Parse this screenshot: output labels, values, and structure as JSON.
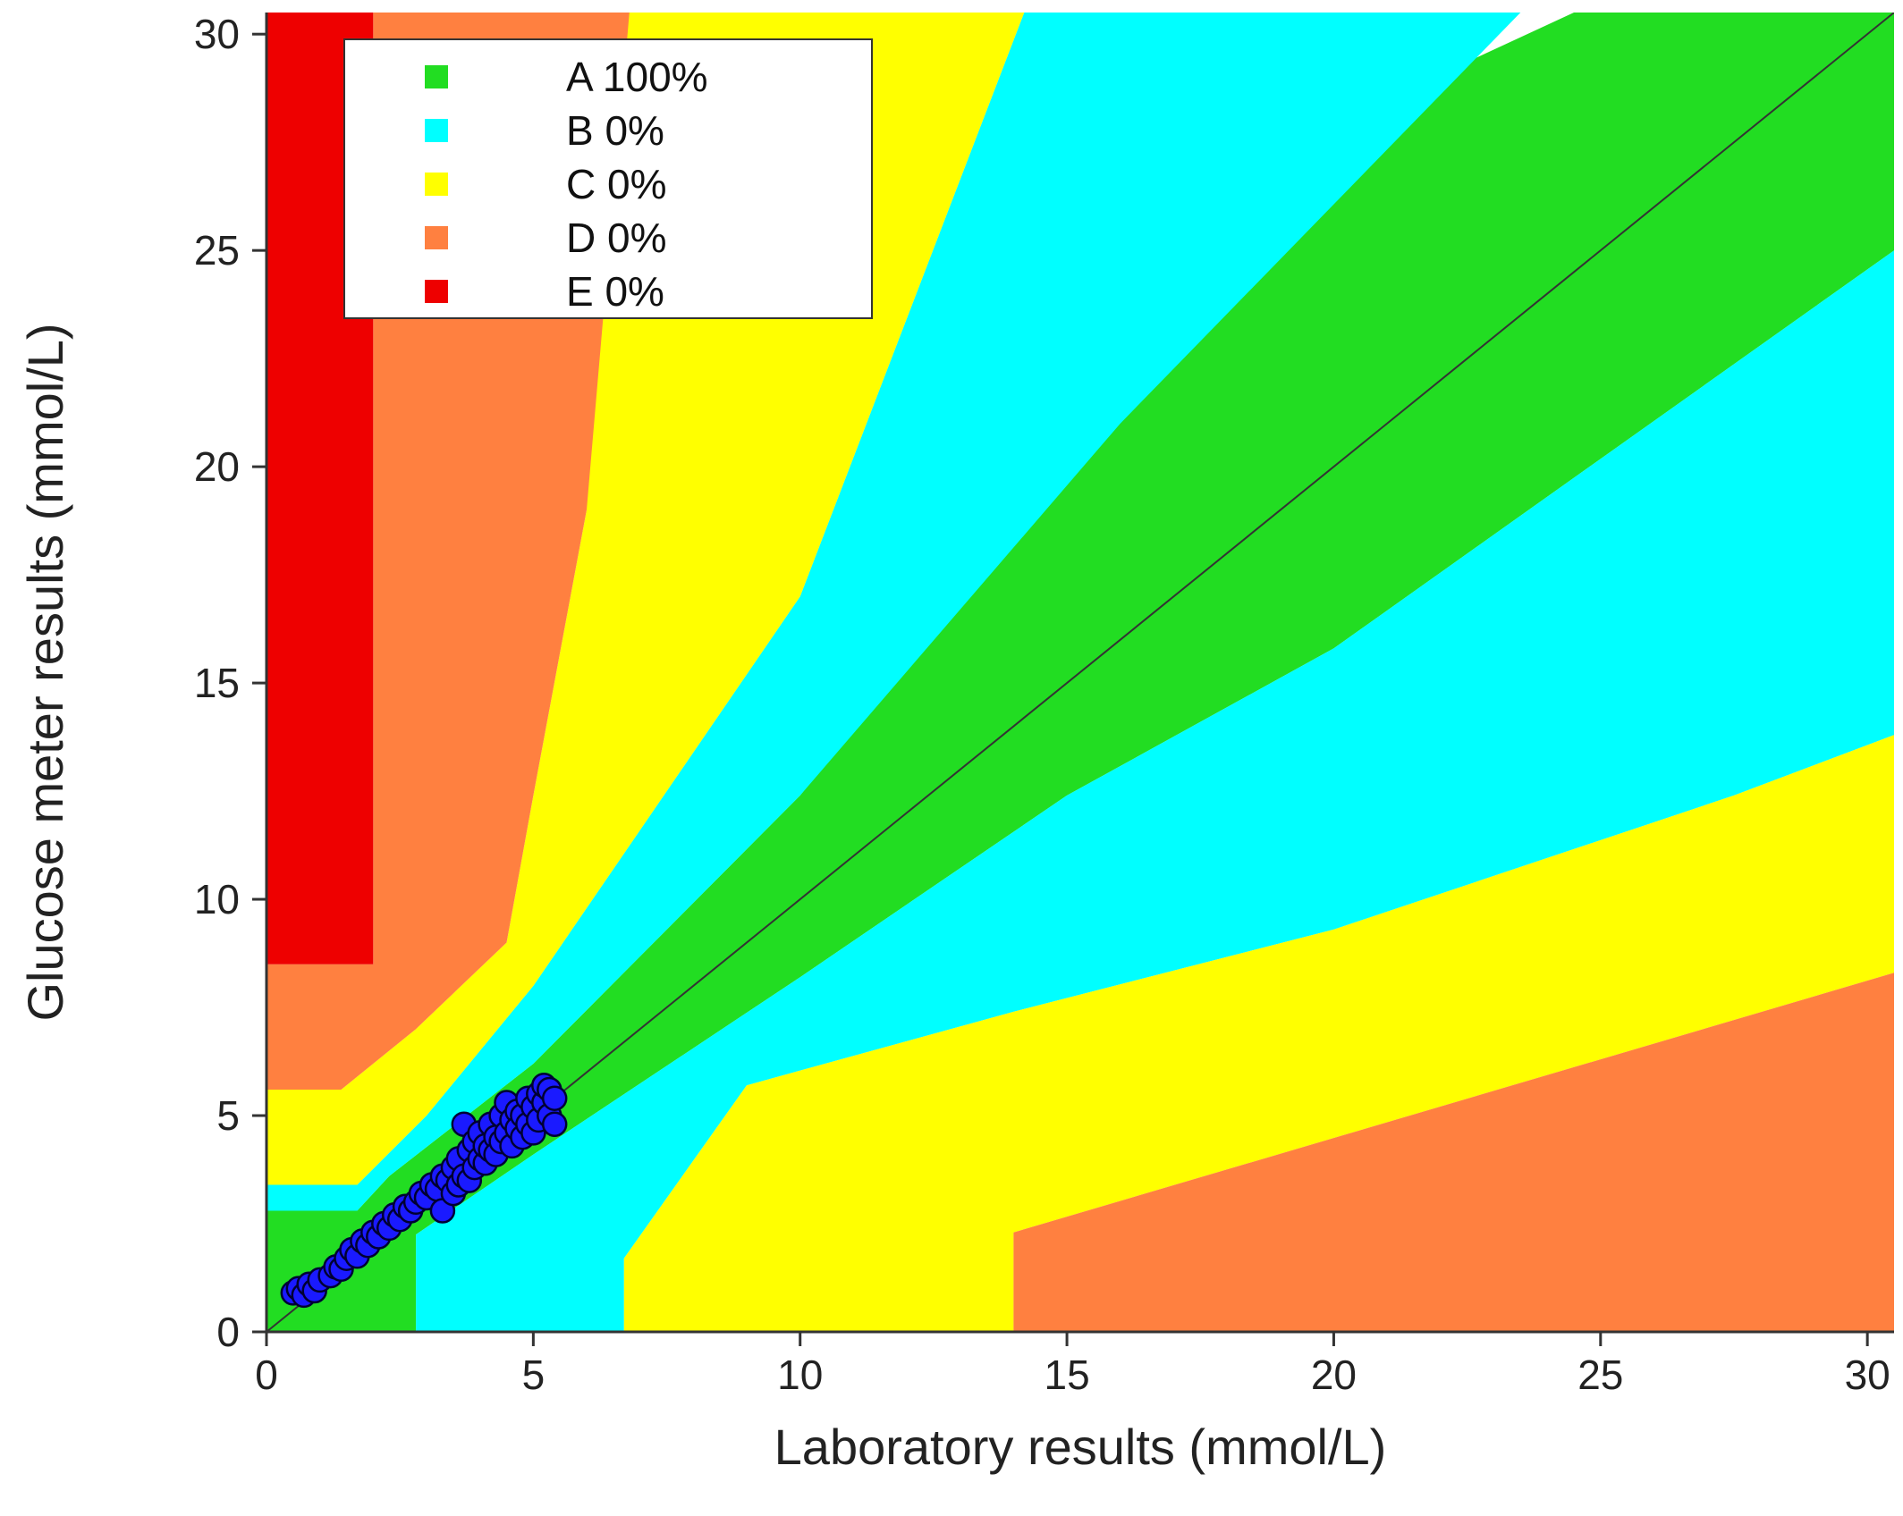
{
  "chart_data": {
    "type": "scatter",
    "title": "",
    "xlabel": "Laboratory results (mmol/L)",
    "ylabel": "Glucose meter results (mmol/L)",
    "xlim": [
      0,
      30.5
    ],
    "ylim": [
      0,
      30.5
    ],
    "xticks": [
      0,
      5,
      10,
      15,
      20,
      25,
      30
    ],
    "yticks": [
      0,
      5,
      10,
      15,
      20,
      25,
      30
    ],
    "grid": false,
    "legend_position": "top-left",
    "legend": [
      {
        "zone": "A",
        "label": "A 100%",
        "color": "#22dd22"
      },
      {
        "zone": "B",
        "label": "B 0%",
        "color": "#00ffff"
      },
      {
        "zone": "C",
        "label": "C 0%",
        "color": "#ffff00"
      },
      {
        "zone": "D",
        "label": "D 0%",
        "color": "#ff8040"
      },
      {
        "zone": "E",
        "label": "E 0%",
        "color": "#ee0000"
      }
    ],
    "zones": [
      {
        "zone": "A",
        "color": "#22dd22",
        "polygon": [
          [
            0,
            0
          ],
          [
            0,
            2.8
          ],
          [
            1.7,
            2.8
          ],
          [
            2.3,
            3.6
          ],
          [
            5,
            6.2
          ],
          [
            10,
            12.4
          ],
          [
            15,
            20
          ],
          [
            21,
            28.5
          ],
          [
            24.5,
            30.5
          ],
          [
            30.5,
            30.5
          ],
          [
            30.5,
            25
          ],
          [
            20,
            15.8
          ],
          [
            15,
            12.4
          ],
          [
            10,
            8.2
          ],
          [
            5,
            4.1
          ],
          [
            2.8,
            2.25
          ],
          [
            2.8,
            0
          ]
        ]
      },
      {
        "zone": "B",
        "color": "#00ffff",
        "polygon": [
          [
            0,
            2.8
          ],
          [
            0,
            3.4
          ],
          [
            1.7,
            3.4
          ],
          [
            3,
            5
          ],
          [
            5,
            8
          ],
          [
            10,
            17
          ],
          [
            14.2,
            30.5
          ],
          [
            23.5,
            30.5
          ],
          [
            16,
            21
          ],
          [
            10,
            12.4
          ],
          [
            5,
            6.2
          ],
          [
            2.3,
            3.6
          ],
          [
            1.7,
            2.8
          ]
        ]
      },
      {
        "zone": "B",
        "color": "#00ffff",
        "polygon": [
          [
            2.8,
            0
          ],
          [
            2.8,
            2.25
          ],
          [
            5,
            4.1
          ],
          [
            10,
            8.2
          ],
          [
            15,
            12.4
          ],
          [
            20,
            15.8
          ],
          [
            30.5,
            25
          ],
          [
            30.5,
            13.8
          ],
          [
            27.5,
            12.4
          ],
          [
            20,
            9.3
          ],
          [
            14,
            7.4
          ],
          [
            9,
            5.7
          ],
          [
            6.7,
            1.7
          ],
          [
            6.7,
            0
          ]
        ]
      },
      {
        "zone": "C",
        "color": "#ffff00",
        "polygon": [
          [
            0,
            3.4
          ],
          [
            0,
            5.6
          ],
          [
            1.4,
            5.6
          ],
          [
            2.8,
            7
          ],
          [
            4.5,
            9
          ],
          [
            5,
            12.4
          ],
          [
            6,
            19
          ],
          [
            5.9,
            30.5
          ],
          [
            14.2,
            30.5
          ],
          [
            10,
            17
          ],
          [
            5,
            8
          ],
          [
            3,
            5
          ],
          [
            1.7,
            3.4
          ]
        ]
      },
      {
        "zone": "C",
        "color": "#ffff00",
        "polygon": [
          [
            6.7,
            0
          ],
          [
            6.7,
            1.7
          ],
          [
            9,
            5.7
          ],
          [
            14,
            7.4
          ],
          [
            20,
            9.3
          ],
          [
            27.5,
            12.4
          ],
          [
            30.5,
            13.8
          ],
          [
            30.5,
            8.3
          ],
          [
            14,
            2.3
          ],
          [
            14,
            0
          ]
        ]
      },
      {
        "zone": "D",
        "color": "#ff8040",
        "polygon": [
          [
            0,
            5.6
          ],
          [
            0,
            8.5
          ],
          [
            2,
            8.5
          ],
          [
            2,
            30.5
          ],
          [
            6.8,
            30.5
          ],
          [
            6,
            19
          ],
          [
            5,
            12.4
          ],
          [
            4.5,
            9
          ],
          [
            2.8,
            7
          ],
          [
            1.4,
            5.6
          ]
        ]
      },
      {
        "zone": "D",
        "color": "#ff8040",
        "polygon": [
          [
            14,
            0
          ],
          [
            14,
            2.3
          ],
          [
            30.5,
            8.3
          ],
          [
            30.5,
            0
          ]
        ]
      },
      {
        "zone": "E",
        "color": "#ee0000",
        "polygon": [
          [
            0,
            8.5
          ],
          [
            0,
            30.5
          ],
          [
            2,
            30.5
          ],
          [
            2,
            8.5
          ]
        ]
      }
    ],
    "identity_line": [
      [
        0,
        0
      ],
      [
        30.5,
        30.5
      ]
    ],
    "points_color": "#1a1aff",
    "points": [
      [
        0.5,
        0.9
      ],
      [
        0.6,
        1.0
      ],
      [
        0.7,
        0.85
      ],
      [
        0.8,
        1.1
      ],
      [
        0.9,
        0.95
      ],
      [
        1.0,
        1.2
      ],
      [
        1.2,
        1.3
      ],
      [
        1.3,
        1.5
      ],
      [
        1.4,
        1.45
      ],
      [
        1.5,
        1.7
      ],
      [
        1.6,
        1.9
      ],
      [
        1.7,
        1.75
      ],
      [
        1.8,
        2.1
      ],
      [
        1.9,
        2.0
      ],
      [
        2.0,
        2.3
      ],
      [
        2.1,
        2.2
      ],
      [
        2.2,
        2.5
      ],
      [
        2.3,
        2.4
      ],
      [
        2.4,
        2.7
      ],
      [
        2.5,
        2.6
      ],
      [
        2.6,
        2.9
      ],
      [
        2.7,
        2.8
      ],
      [
        2.8,
        3.0
      ],
      [
        2.9,
        3.2
      ],
      [
        3.0,
        3.1
      ],
      [
        3.1,
        3.4
      ],
      [
        3.2,
        3.3
      ],
      [
        3.3,
        3.6
      ],
      [
        3.3,
        2.8
      ],
      [
        3.4,
        3.5
      ],
      [
        3.5,
        3.8
      ],
      [
        3.5,
        3.2
      ],
      [
        3.6,
        4.0
      ],
      [
        3.6,
        3.4
      ],
      [
        3.7,
        4.8
      ],
      [
        3.7,
        3.6
      ],
      [
        3.8,
        4.2
      ],
      [
        3.8,
        3.5
      ],
      [
        3.9,
        4.4
      ],
      [
        3.9,
        3.8
      ],
      [
        4.0,
        4.6
      ],
      [
        4.0,
        4.0
      ],
      [
        4.1,
        3.9
      ],
      [
        4.1,
        4.3
      ],
      [
        4.2,
        4.8
      ],
      [
        4.2,
        4.2
      ],
      [
        4.3,
        4.5
      ],
      [
        4.3,
        4.1
      ],
      [
        4.4,
        5.0
      ],
      [
        4.4,
        4.4
      ],
      [
        4.5,
        5.3
      ],
      [
        4.5,
        4.6
      ],
      [
        4.6,
        4.9
      ],
      [
        4.6,
        4.3
      ],
      [
        4.7,
        5.1
      ],
      [
        4.7,
        4.7
      ],
      [
        4.8,
        4.5
      ],
      [
        4.8,
        5.0
      ],
      [
        4.9,
        5.4
      ],
      [
        4.9,
        4.8
      ],
      [
        5.0,
        5.2
      ],
      [
        5.0,
        4.6
      ],
      [
        5.1,
        5.5
      ],
      [
        5.1,
        4.9
      ],
      [
        5.2,
        5.3
      ],
      [
        5.2,
        5.7
      ],
      [
        5.3,
        5.0
      ],
      [
        5.3,
        5.6
      ],
      [
        5.4,
        5.4
      ],
      [
        5.4,
        4.8
      ]
    ]
  }
}
